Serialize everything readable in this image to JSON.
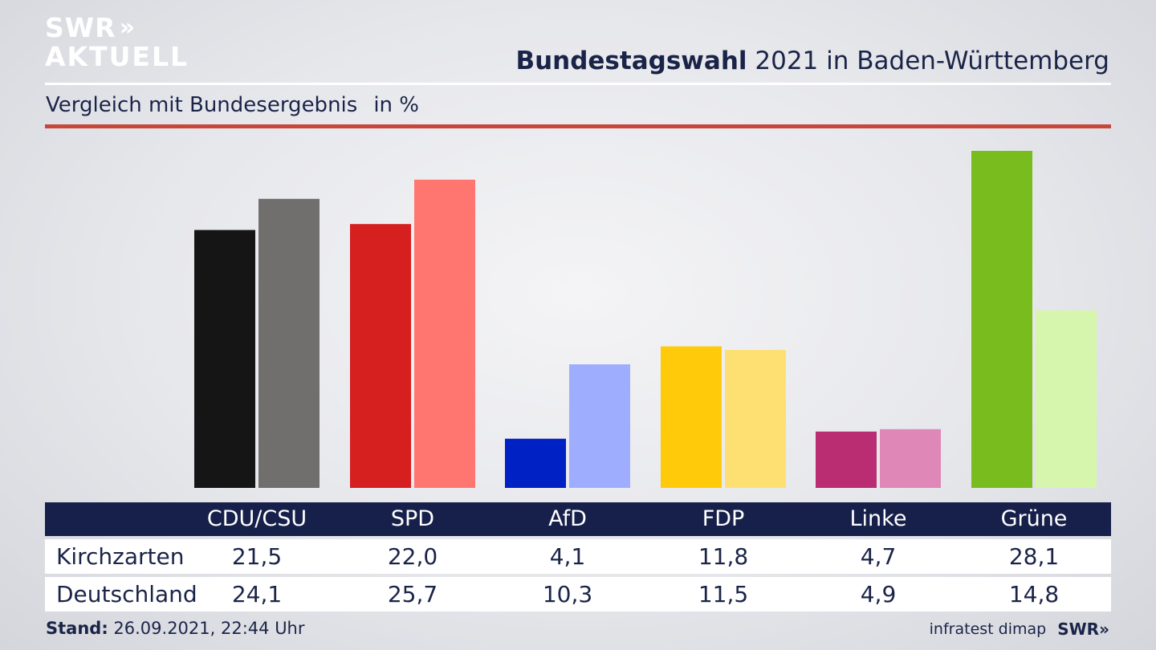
{
  "brand": {
    "logo_line1": "SWR",
    "logo_line2": "AKTUELL",
    "logo_chevrons": "»"
  },
  "header": {
    "title_bold": "Bundestagswahl",
    "title_rest": "2021 in Baden-Württemberg",
    "subtitle": "Vergleich mit Bundesergebnis",
    "unit": "in %"
  },
  "chart_data": {
    "type": "bar",
    "categories": [
      "CDU/CSU",
      "SPD",
      "AfD",
      "FDP",
      "Linke",
      "Grüne"
    ],
    "series": [
      {
        "name": "Kirchzarten",
        "values": [
          21.5,
          22.0,
          4.1,
          11.8,
          4.7,
          28.1
        ],
        "colors": [
          "#151515",
          "#d61f1f",
          "#0022c4",
          "#ffca0a",
          "#bb2d72",
          "#78bc1e"
        ]
      },
      {
        "name": "Deutschland",
        "values": [
          24.1,
          25.7,
          10.3,
          11.5,
          4.9,
          14.8
        ],
        "colors": [
          "#706f6d",
          "#ff7570",
          "#9fadff",
          "#fde071",
          "#df88b8",
          "#d6f6ae"
        ]
      }
    ],
    "ylim": [
      0,
      28.1
    ],
    "title": "Bundestagswahl 2021 in Baden-Württemberg",
    "xlabel": "",
    "ylabel": ""
  },
  "table": {
    "headers": [
      "CDU/CSU",
      "SPD",
      "AfD",
      "FDP",
      "Linke",
      "Grüne"
    ],
    "rows": [
      {
        "label": "Kirchzarten",
        "values": [
          "21,5",
          "22,0",
          "4,1",
          "11,8",
          "4,7",
          "28,1"
        ]
      },
      {
        "label": "Deutschland",
        "values": [
          "24,1",
          "25,7",
          "10,3",
          "11,5",
          "4,9",
          "14,8"
        ]
      }
    ]
  },
  "footer": {
    "stand_label": "Stand:",
    "stand_value": "26.09.2021, 22:44 Uhr",
    "source": "infratest dimap",
    "brand": "SWR»"
  },
  "colors": {
    "navy": "#16204a",
    "accent_red": "#c8463a"
  }
}
